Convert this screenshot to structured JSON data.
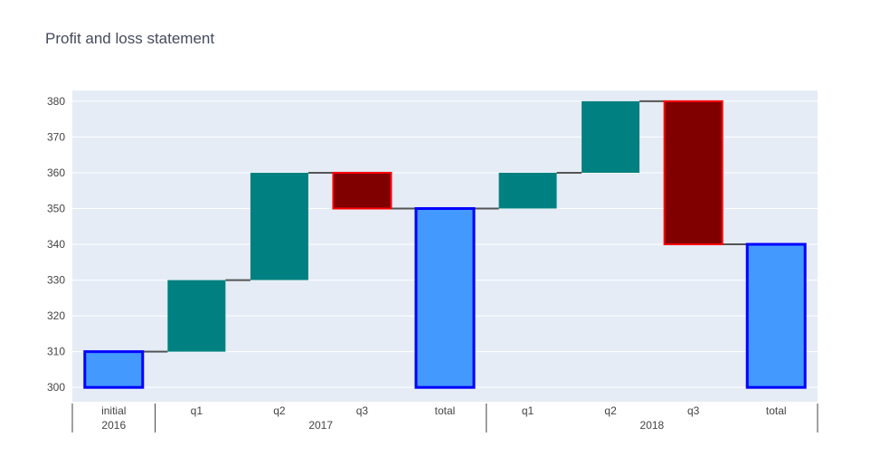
{
  "chart_data": {
    "type": "waterfall",
    "title": "Profit and loss statement",
    "xlabel": "",
    "ylabel": "",
    "ylim": [
      296,
      383
    ],
    "yticks": [
      300,
      310,
      320,
      330,
      340,
      350,
      360,
      370,
      380
    ],
    "grid": true,
    "legend": "none",
    "groups": [
      {
        "label": "2016",
        "size": 1
      },
      {
        "label": "2017",
        "size": 4
      },
      {
        "label": "2018",
        "size": 4
      }
    ],
    "bars": [
      {
        "category": "initial",
        "group": "2016",
        "kind": "total",
        "base": 300,
        "value": 310
      },
      {
        "category": "q1",
        "group": "2017",
        "kind": "increase",
        "base": 310,
        "value": 330
      },
      {
        "category": "q2",
        "group": "2017",
        "kind": "increase",
        "base": 330,
        "value": 360
      },
      {
        "category": "q3",
        "group": "2017",
        "kind": "decrease",
        "base": 360,
        "value": 350
      },
      {
        "category": "total",
        "group": "2017",
        "kind": "total",
        "base": 300,
        "value": 350
      },
      {
        "category": "q1",
        "group": "2018",
        "kind": "increase",
        "base": 350,
        "value": 360
      },
      {
        "category": "q2",
        "group": "2018",
        "kind": "increase",
        "base": 360,
        "value": 380
      },
      {
        "category": "q3",
        "group": "2018",
        "kind": "decrease",
        "base": 380,
        "value": 340
      },
      {
        "category": "total",
        "group": "2018",
        "kind": "total",
        "base": 300,
        "value": 340
      }
    ],
    "colors": {
      "increase": "#008080",
      "decrease_fill": "#800000",
      "decrease_line": "#ff0000",
      "total_fill": "#4499ff",
      "total_line": "#0000ff",
      "connector": "#555555",
      "plot_bg": "#e5ecf6",
      "grid": "#ffffff"
    }
  }
}
